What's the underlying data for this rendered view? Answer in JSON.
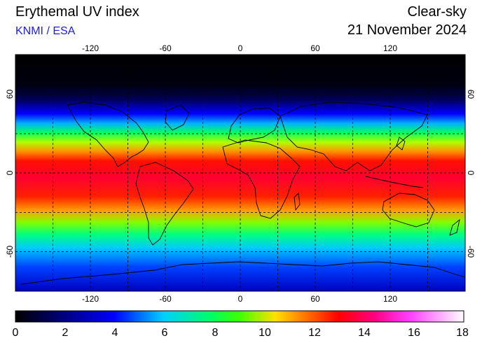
{
  "header": {
    "title": "Erythemal UV index",
    "source": "KNMI / ESA",
    "sky_condition": "Clear-sky",
    "date": "21 November 2024"
  },
  "map": {
    "lon_ticks": [
      "-120",
      "-60",
      "0",
      "60",
      "120"
    ],
    "lat_ticks": [
      "60",
      "0",
      "-60"
    ],
    "lon_tick_values": [
      -120,
      -60,
      0,
      60,
      120
    ],
    "lat_tick_values": [
      60,
      0,
      -60
    ],
    "lon_range": [
      -180,
      180
    ],
    "lat_range": [
      -90,
      90
    ],
    "grid": true
  },
  "colorbar": {
    "labels": [
      "0",
      "2",
      "4",
      "6",
      "8",
      "10",
      "12",
      "14",
      "16",
      "18"
    ],
    "min": 0,
    "max": 18,
    "colors": [
      "#000000",
      "#00007f",
      "#0000ff",
      "#00d0ff",
      "#00ff60",
      "#40ff00",
      "#ffe000",
      "#ff8000",
      "#ff0000",
      "#ff0080",
      "#ff40ff",
      "#ffffff"
    ]
  }
}
